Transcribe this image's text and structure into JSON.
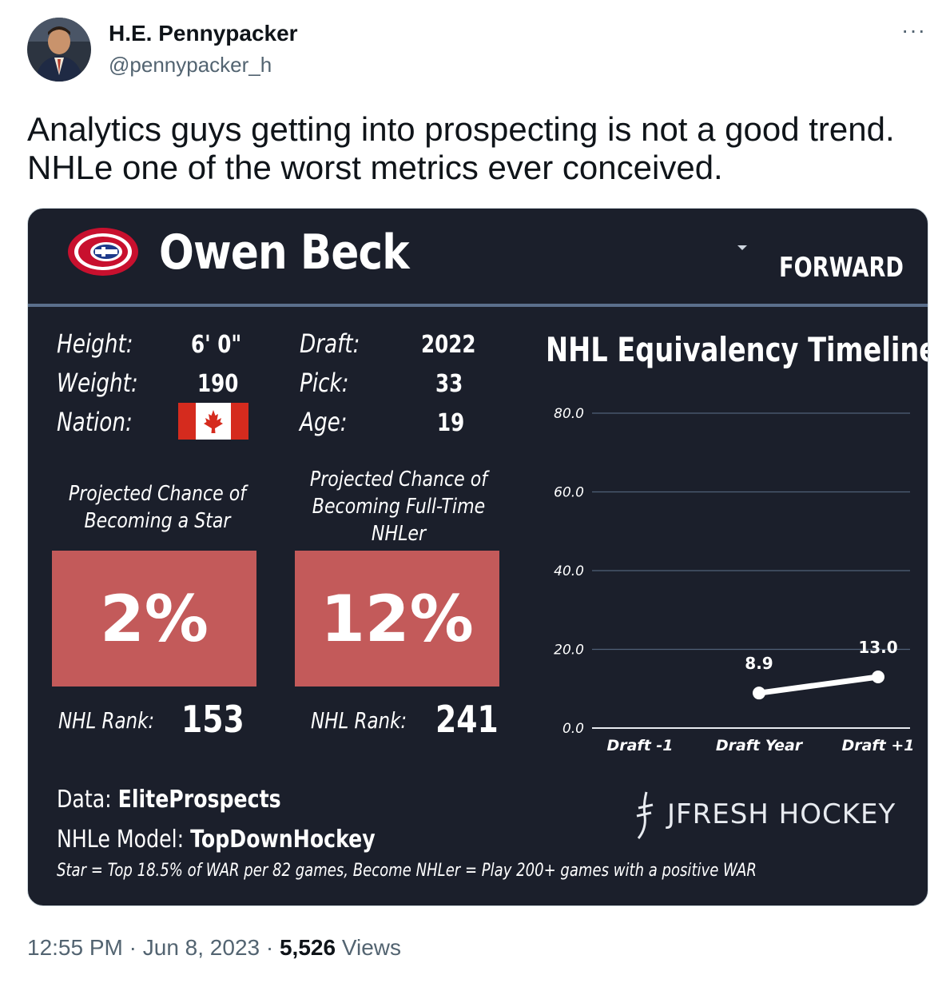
{
  "author": {
    "name": "H.E. Pennypacker",
    "handle": "@pennypacker_h"
  },
  "tweet": {
    "text": "Analytics guys getting into prospecting is not a good trend. NHLe one of the worst metrics ever conceived."
  },
  "card": {
    "player_name": "Owen Beck",
    "position": "FORWARD",
    "info": {
      "height_label": "Height:",
      "height_value": "6' 0\"",
      "weight_label": "Weight:",
      "weight_value": "190",
      "nation_label": "Nation:",
      "draft_label": "Draft:",
      "draft_value": "2022",
      "pick_label": "Pick:",
      "pick_value": "33",
      "age_label": "Age:",
      "age_value": "19"
    },
    "star": {
      "label": "Projected Chance of\nBecoming a Star",
      "value": "2%",
      "rank_label": "NHL Rank:",
      "rank_value": "153"
    },
    "nhler": {
      "label": "Projected Chance of\nBecoming Full-Time\nNHLer",
      "value": "12%",
      "rank_label": "NHL Rank:",
      "rank_value": "241"
    },
    "footer": {
      "data_label": "Data: ",
      "data_value": "EliteProspects",
      "model_label": "NHLe Model: ",
      "model_value": "TopDownHockey",
      "footnote": "Star = Top 18.5% of WAR per 82 games, Become NHLer = Play 200+ games with a positive WAR",
      "brand": "JFRESH HOCKEY"
    },
    "colors": {
      "background": "#1b1f2b",
      "probability_box": "#c35a5a",
      "divider": "#5b6f8c"
    }
  },
  "chart_data": {
    "type": "line",
    "title": "NHL Equivalency Timeline",
    "categories": [
      "Draft -1",
      "Draft Year",
      "Draft +1"
    ],
    "series": [
      {
        "values": [
          null,
          8.9,
          13.0
        ],
        "labels": [
          "",
          "8.9",
          "13.0"
        ]
      }
    ],
    "yticks": [
      "0.0",
      "20.0",
      "40.0",
      "60.0",
      "80.0"
    ],
    "ylim": [
      0,
      80
    ],
    "grid": true
  },
  "meta": {
    "time": "12:55 PM",
    "date": "Jun 8, 2023",
    "views_count": "5,526",
    "views_label": "Views"
  }
}
